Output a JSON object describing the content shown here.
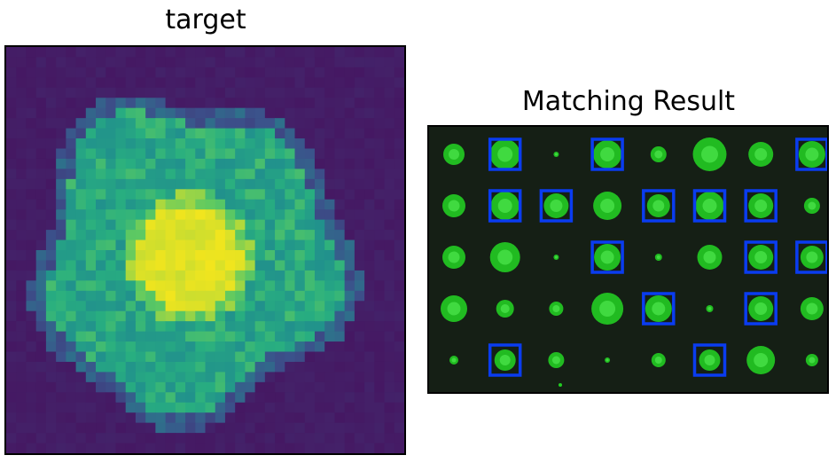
{
  "titles": {
    "target": "target",
    "result": "Matching Result"
  },
  "colors": {
    "viridis_dark": "#46135f",
    "viridis_teal": "#2a9a8a",
    "viridis_green": "#55c667",
    "viridis_yellow": "#f2e51d",
    "plate_bg": "#151f15",
    "colony_green": "#22cc22",
    "match_box": "#0a3cf0"
  },
  "colony_grid": {
    "rows": 5,
    "cols": 8,
    "matches": [
      [
        0,
        1
      ],
      [
        0,
        3
      ],
      [
        0,
        7
      ],
      [
        1,
        1
      ],
      [
        1,
        2
      ],
      [
        1,
        4
      ],
      [
        1,
        5
      ],
      [
        1,
        6
      ],
      [
        2,
        3
      ],
      [
        2,
        6
      ],
      [
        2,
        7
      ],
      [
        3,
        4
      ],
      [
        3,
        6
      ],
      [
        4,
        1
      ],
      [
        4,
        5
      ]
    ]
  }
}
